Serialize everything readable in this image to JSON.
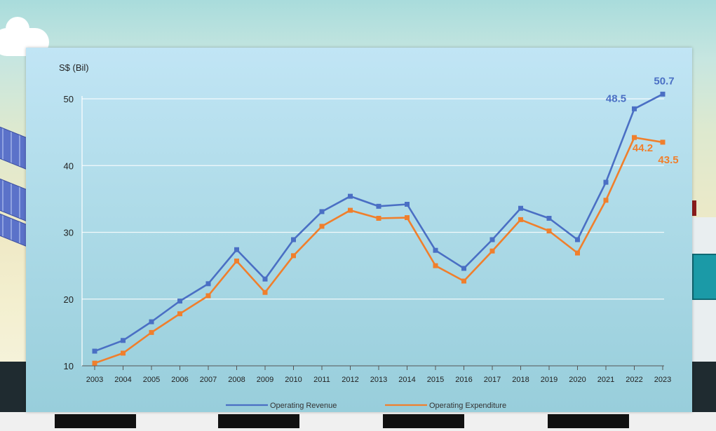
{
  "chart_data": {
    "type": "line",
    "ylabel": "S$ (Bil)",
    "ylim": [
      10,
      50
    ],
    "yticks": [
      10,
      20,
      30,
      40,
      50
    ],
    "grid": true,
    "legend_position": "bottom-center",
    "x": [
      "2003",
      "2004",
      "2005",
      "2006",
      "2007",
      "2008",
      "2009",
      "2010",
      "2011",
      "2012",
      "2013",
      "2014",
      "2015",
      "2016",
      "2017",
      "2018",
      "2019",
      "2020",
      "2021",
      "2022",
      "2023"
    ],
    "series": [
      {
        "name": "Operating Revenue",
        "color": "#4a6fc4",
        "values": [
          12.2,
          13.8,
          16.6,
          19.7,
          22.3,
          27.4,
          23.0,
          28.9,
          33.1,
          35.4,
          33.9,
          34.2,
          27.3,
          24.6,
          28.9,
          33.6,
          32.1,
          28.9,
          37.5,
          48.5,
          50.7
        ]
      },
      {
        "name": "Operating Expenditure",
        "color": "#f07f2c",
        "values": [
          10.4,
          11.9,
          15.0,
          17.8,
          20.5,
          25.7,
          21.0,
          26.5,
          30.9,
          33.3,
          32.1,
          32.2,
          25.0,
          22.7,
          27.2,
          31.9,
          30.2,
          26.9,
          34.8,
          44.2,
          43.5
        ]
      }
    ],
    "data_labels": [
      {
        "series": 0,
        "index": 19,
        "text": "48.5"
      },
      {
        "series": 0,
        "index": 20,
        "text": "50.7"
      },
      {
        "series": 1,
        "index": 19,
        "text": "44.2"
      },
      {
        "series": 1,
        "index": 20,
        "text": "43.5"
      }
    ]
  }
}
